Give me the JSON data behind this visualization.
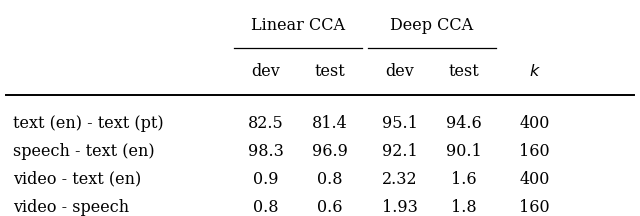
{
  "row_labels": [
    "text (en) - text (pt)",
    "speech - text (en)",
    "video - text (en)",
    "video - speech"
  ],
  "data": [
    [
      "82.5",
      "81.4",
      "95.1",
      "94.6",
      "400"
    ],
    [
      "98.3",
      "96.9",
      "92.1",
      "90.1",
      "160"
    ],
    [
      "0.9",
      "0.8",
      "2.32",
      "1.6",
      "400"
    ],
    [
      "0.8",
      "0.6",
      "1.93",
      "1.8",
      "160"
    ]
  ],
  "background_color": "#ffffff",
  "font_size": 11.5
}
